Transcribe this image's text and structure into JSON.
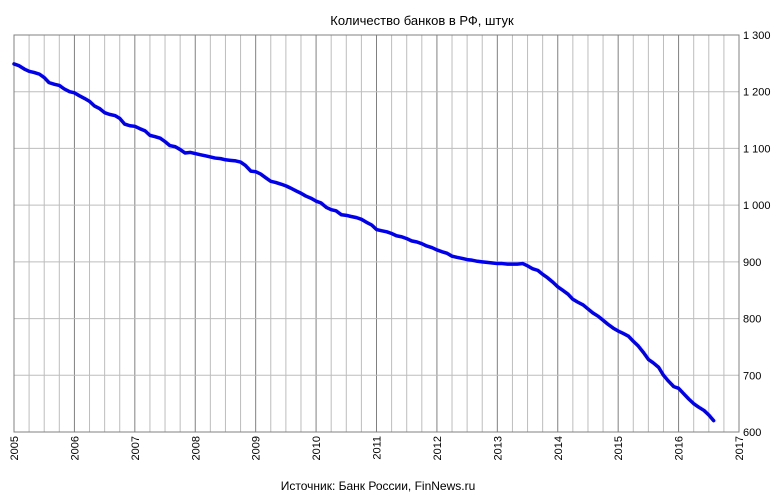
{
  "chart_data": {
    "type": "line",
    "title": "Количество банков  в РФ, штук",
    "source": "Источник: Банк России, FinNews.ru",
    "xlim": [
      2005,
      2017
    ],
    "ylim": [
      600,
      1300
    ],
    "x_tick_labels": [
      "2005",
      "2006",
      "2007",
      "2008",
      "2009",
      "2010",
      "2011",
      "2012",
      "2013",
      "2014",
      "2015",
      "2016",
      "2017"
    ],
    "y_tick_labels": [
      "600",
      "700",
      "800",
      "900",
      "1 000",
      "1 100",
      "1 200",
      "1 300"
    ],
    "grid": true,
    "line_color": "#0000ee",
    "series": [
      {
        "x": [
          2005.0,
          2005.08,
          2005.17,
          2005.25,
          2005.33,
          2005.42,
          2005.5,
          2005.58,
          2005.67,
          2005.75,
          2005.83,
          2005.92,
          2006.0,
          2006.08,
          2006.17,
          2006.25,
          2006.33,
          2006.42,
          2006.5,
          2006.58,
          2006.67,
          2006.75,
          2006.83,
          2006.92,
          2007.0,
          2007.08,
          2007.17,
          2007.25,
          2007.33,
          2007.42,
          2007.5,
          2007.58,
          2007.67,
          2007.75,
          2007.83,
          2007.92,
          2008.0,
          2008.08,
          2008.17,
          2008.25,
          2008.33,
          2008.42,
          2008.5,
          2008.58,
          2008.67,
          2008.75,
          2008.83,
          2008.92,
          2009.0,
          2009.08,
          2009.17,
          2009.25,
          2009.33,
          2009.42,
          2009.5,
          2009.58,
          2009.67,
          2009.75,
          2009.83,
          2009.92,
          2010.0,
          2010.08,
          2010.17,
          2010.25,
          2010.33,
          2010.42,
          2010.5,
          2010.58,
          2010.67,
          2010.75,
          2010.83,
          2010.92,
          2011.0,
          2011.08,
          2011.17,
          2011.25,
          2011.33,
          2011.42,
          2011.5,
          2011.58,
          2011.67,
          2011.75,
          2011.83,
          2011.92,
          2012.0,
          2012.08,
          2012.17,
          2012.25,
          2012.33,
          2012.42,
          2012.5,
          2012.58,
          2012.67,
          2012.75,
          2012.83,
          2012.92,
          2013.0,
          2013.08,
          2013.17,
          2013.25,
          2013.33,
          2013.42,
          2013.5,
          2013.58,
          2013.67,
          2013.75,
          2013.83,
          2013.92,
          2014.0,
          2014.08,
          2014.17,
          2014.25,
          2014.33,
          2014.42,
          2014.5,
          2014.58,
          2014.67,
          2014.75,
          2014.83,
          2014.92,
          2015.0,
          2015.08,
          2015.17,
          2015.25,
          2015.33,
          2015.42,
          2015.5,
          2015.58,
          2015.67,
          2015.75,
          2015.83,
          2015.92,
          2016.0,
          2016.08,
          2016.17,
          2016.25,
          2016.33,
          2016.42,
          2016.5,
          2016.58
        ],
        "y": [
          1249,
          1246,
          1240,
          1236,
          1234,
          1231,
          1225,
          1216,
          1213,
          1211,
          1205,
          1200,
          1198,
          1193,
          1188,
          1183,
          1175,
          1170,
          1163,
          1160,
          1158,
          1153,
          1143,
          1140,
          1139,
          1135,
          1131,
          1123,
          1121,
          1118,
          1112,
          1105,
          1103,
          1098,
          1092,
          1093,
          1091,
          1089,
          1087,
          1085,
          1083,
          1082,
          1080,
          1079,
          1078,
          1076,
          1070,
          1060,
          1059,
          1055,
          1048,
          1042,
          1040,
          1037,
          1034,
          1030,
          1025,
          1021,
          1016,
          1012,
          1007,
          1004,
          996,
          992,
          990,
          983,
          982,
          980,
          978,
          975,
          970,
          965,
          957,
          955,
          953,
          950,
          946,
          944,
          941,
          937,
          935,
          932,
          928,
          925,
          921,
          918,
          915,
          910,
          908,
          906,
          904,
          903,
          901,
          900,
          899,
          898,
          897,
          897,
          896,
          896,
          896,
          897,
          893,
          888,
          885,
          878,
          872,
          864,
          856,
          850,
          843,
          834,
          829,
          824,
          817,
          810,
          804,
          797,
          790,
          783,
          778,
          774,
          769,
          760,
          752,
          740,
          728,
          722,
          714,
          700,
          690,
          680,
          677,
          668,
          658,
          650,
          644,
          638,
          630,
          620
        ]
      }
    ]
  }
}
